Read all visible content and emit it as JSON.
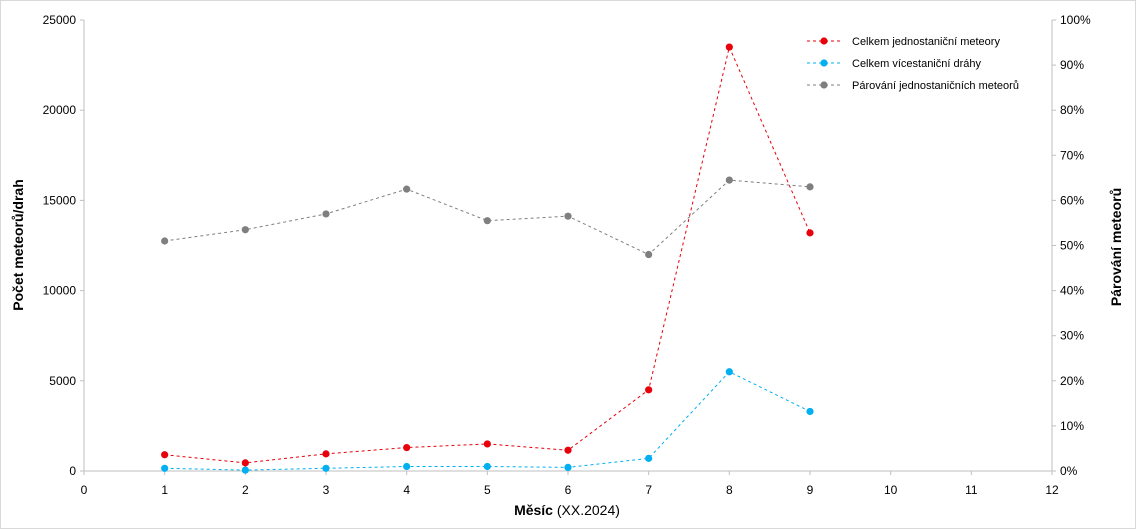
{
  "chart_data": {
    "type": "line",
    "x": [
      1,
      2,
      3,
      4,
      5,
      6,
      7,
      8,
      9
    ],
    "xlim": [
      0,
      12
    ],
    "x_ticks": [
      "0",
      "1",
      "2",
      "3",
      "4",
      "5",
      "6",
      "7",
      "8",
      "9",
      "10",
      "11",
      "12"
    ],
    "xlabel_bold": "Měsíc",
    "xlabel_rest": " (XX.2024)",
    "ylabel": "Počet meteorů/drah",
    "ylim": [
      0,
      25000
    ],
    "y_ticks": [
      "0",
      "5000",
      "10000",
      "15000",
      "20000",
      "25000"
    ],
    "y2label": "Párování meteorů",
    "y2lim": [
      0,
      1
    ],
    "y2_ticks": [
      "0%",
      "10%",
      "20%",
      "30%",
      "40%",
      "50%",
      "60%",
      "70%",
      "80%",
      "90%",
      "100%"
    ],
    "grid": false,
    "legend_position": "top-right",
    "series": [
      {
        "name": "Celkem jednostaniční meteory",
        "axis": "left",
        "color": "#e8000b",
        "style": "dashed",
        "values": [
          900,
          450,
          950,
          1300,
          1500,
          1150,
          4500,
          23500,
          13200
        ]
      },
      {
        "name": "Celkem vícestaniční dráhy",
        "axis": "left",
        "color": "#00b0f0",
        "style": "dashed",
        "values": [
          150,
          50,
          150,
          250,
          250,
          200,
          700,
          5500,
          3300
        ]
      },
      {
        "name": "Párování jednostaničních meteorů",
        "axis": "right",
        "color": "#7f7f7f",
        "style": "dashed",
        "values": [
          0.51,
          0.535,
          0.57,
          0.625,
          0.555,
          0.565,
          0.48,
          0.645,
          0.63
        ]
      }
    ]
  }
}
